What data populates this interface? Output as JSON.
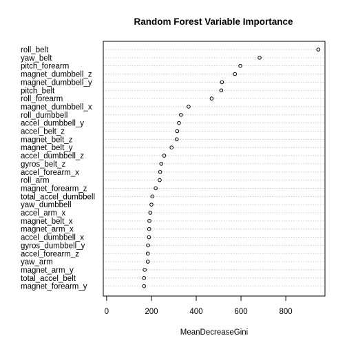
{
  "chart_data": {
    "type": "scatter",
    "title": "Random Forest Variable Importance",
    "xlabel": "MeanDecreaseGini",
    "ylabel": "",
    "xlim": [
      -15,
      975
    ],
    "xticks": [
      0,
      200,
      400,
      600,
      800
    ],
    "grid": true,
    "categories": [
      "roll_belt",
      "yaw_belt",
      "pitch_forearm",
      "magnet_dumbbell_z",
      "magnet_dumbbell_y",
      "pitch_belt",
      "roll_forearm",
      "magnet_dumbbell_x",
      "roll_dumbbell",
      "accel_dumbbell_y",
      "accel_belt_z",
      "magnet_belt_z",
      "magnet_belt_y",
      "accel_dumbbell_z",
      "gyros_belt_z",
      "accel_forearm_x",
      "roll_arm",
      "magnet_forearm_z",
      "total_accel_dumbbell",
      "yaw_dumbbell",
      "accel_arm_x",
      "magnet_belt_x",
      "magnet_arm_x",
      "accel_dumbbell_x",
      "gyros_dumbbell_y",
      "accel_forearm_z",
      "yaw_arm",
      "magnet_arm_y",
      "total_accel_belt",
      "magnet_forearm_y"
    ],
    "values": [
      945,
      683,
      597,
      573,
      515,
      512,
      469,
      366,
      332,
      323,
      315,
      313,
      290,
      257,
      244,
      239,
      237,
      219,
      204,
      200,
      195,
      191,
      190,
      189,
      185,
      184,
      184,
      170,
      167,
      167
    ]
  }
}
